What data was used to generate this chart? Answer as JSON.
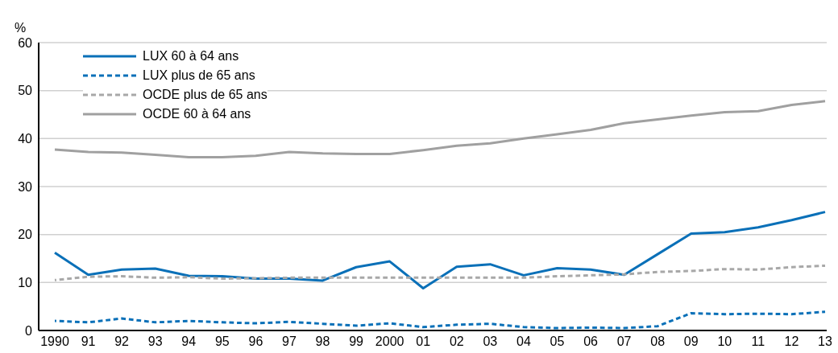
{
  "chart_data": {
    "type": "line",
    "ylabel": "%",
    "categories": [
      "1990",
      "91",
      "92",
      "93",
      "94",
      "95",
      "96",
      "97",
      "98",
      "99",
      "2000",
      "01",
      "02",
      "03",
      "04",
      "05",
      "06",
      "07",
      "08",
      "09",
      "10",
      "11",
      "12",
      "13"
    ],
    "series": [
      {
        "name": "LUX 60 à 64 ans",
        "color": "#0a70b8",
        "line_style": "solid",
        "values": [
          16.2,
          11.6,
          12.7,
          12.9,
          11.4,
          11.3,
          10.8,
          10.8,
          10.4,
          13.2,
          14.4,
          8.8,
          13.3,
          13.8,
          11.5,
          13.0,
          12.7,
          11.6,
          15.9,
          20.2,
          20.5,
          21.5,
          23.0,
          24.7
        ]
      },
      {
        "name": "LUX plus de 65 ans",
        "color": "#0a70b8",
        "line_style": "dashed",
        "values": [
          2.0,
          1.7,
          2.5,
          1.7,
          2.0,
          1.7,
          1.5,
          1.8,
          1.4,
          1.0,
          1.5,
          0.7,
          1.2,
          1.4,
          0.7,
          0.5,
          0.6,
          0.5,
          0.9,
          3.6,
          3.4,
          3.5,
          3.4,
          3.9
        ]
      },
      {
        "name": "OCDE plus de 65 ans",
        "color": "#a8a8a8",
        "line_style": "dashed",
        "values": [
          10.5,
          11.2,
          11.3,
          11.0,
          11.1,
          10.8,
          10.9,
          11.0,
          11.0,
          11.0,
          11.0,
          11.0,
          11.0,
          11.0,
          11.0,
          11.3,
          11.5,
          11.7,
          12.2,
          12.4,
          12.8,
          12.7,
          13.2,
          13.5
        ]
      },
      {
        "name": "OCDE 60 à 64 ans",
        "color": "#a0a0a0",
        "line_style": "solid",
        "values": [
          37.7,
          37.2,
          37.1,
          36.6,
          36.1,
          36.1,
          36.4,
          37.2,
          36.9,
          36.8,
          36.8,
          37.6,
          38.5,
          39.0,
          40.0,
          40.9,
          41.8,
          43.2,
          44.0,
          44.8,
          45.5,
          45.7,
          47.0,
          47.8
        ]
      }
    ],
    "ylim": [
      0,
      60
    ],
    "yticks": [
      0,
      10,
      20,
      30,
      40,
      50,
      60
    ],
    "grid": "y",
    "legend": "top left",
    "marker": "none"
  }
}
